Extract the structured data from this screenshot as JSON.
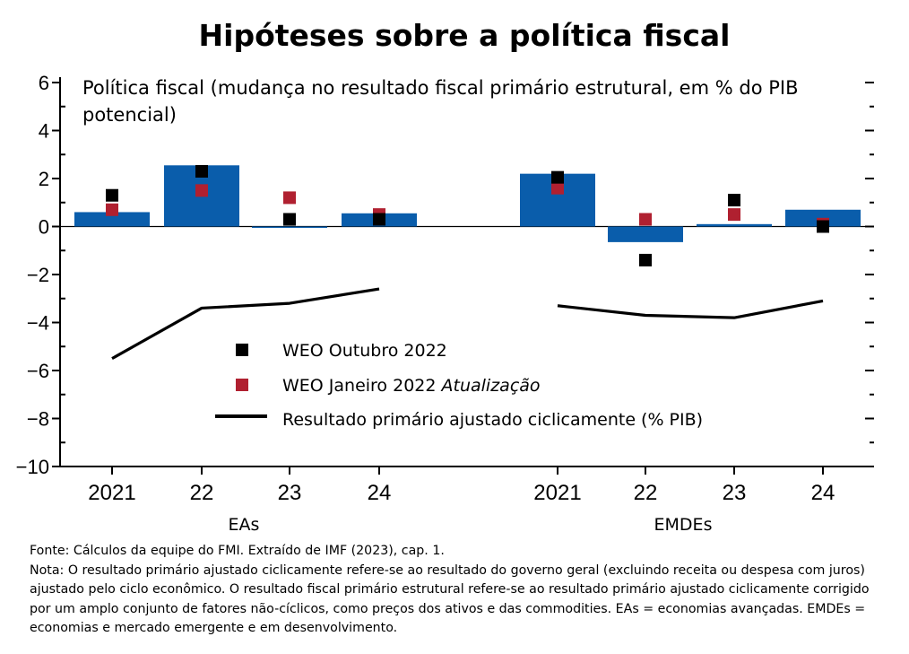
{
  "title": "Hipóteses sobre a política fiscal",
  "subtitle_line1": "Política fiscal (mudança no resultado fiscal primário estrutural, em % do PIB",
  "subtitle_line2": "potencial)",
  "colors": {
    "bar": "#0a5dab",
    "october": "#000000",
    "january": "#b02030",
    "line": "#000000"
  },
  "legend": {
    "october": "WEO Outubro 2022",
    "january": "WEO Janeiro 2022",
    "january_italic": "Atualização",
    "line": "Resultado primário ajustado ciclicamente (% PIB)"
  },
  "chart_data": {
    "type": "bar",
    "ylim": [
      -10,
      6
    ],
    "ytick_labels": [
      "6",
      "4",
      "2",
      "0",
      "−2",
      "−4",
      "−6",
      "−8",
      "−10"
    ],
    "groups": [
      {
        "label": "EAs",
        "categories": [
          "2021",
          "22",
          "23",
          "24"
        ],
        "bar_values": [
          0.6,
          2.55,
          -0.05,
          0.55
        ],
        "weo_october_2022": [
          1.3,
          2.3,
          0.3,
          0.3
        ],
        "weo_january_2022": [
          0.7,
          1.5,
          1.2,
          0.5
        ],
        "cyclically_adjusted_primary_balance": [
          -5.5,
          -3.4,
          -3.2,
          -2.6
        ]
      },
      {
        "label": "EMDEs",
        "categories": [
          "2021",
          "22",
          "23",
          "24"
        ],
        "bar_values": [
          2.2,
          -0.65,
          0.1,
          0.7
        ],
        "weo_october_2022": [
          2.05,
          -1.4,
          1.1,
          0.0
        ],
        "weo_january_2022": [
          1.6,
          0.3,
          0.5,
          0.1
        ],
        "cyclically_adjusted_primary_balance": [
          -3.3,
          -3.7,
          -3.8,
          -3.1
        ]
      }
    ]
  },
  "footnote": {
    "source": "Fonte: Cálculos da equipe do FMI. Extraído de IMF (2023), cap. 1.",
    "note": "Nota: O resultado primário ajustado ciclicamente refere-se ao resultado do governo geral (excluindo receita ou despesa com juros) ajustado pelo ciclo econômico. O resultado fiscal primário estrutural refere-se ao resultado primário ajustado ciclicamente corrigido por um amplo conjunto de fatores não-cíclicos, como preços dos ativos e das commodities. EAs = economias avançadas. EMDEs = economias e mercado emergente e em desenvolvimento."
  }
}
